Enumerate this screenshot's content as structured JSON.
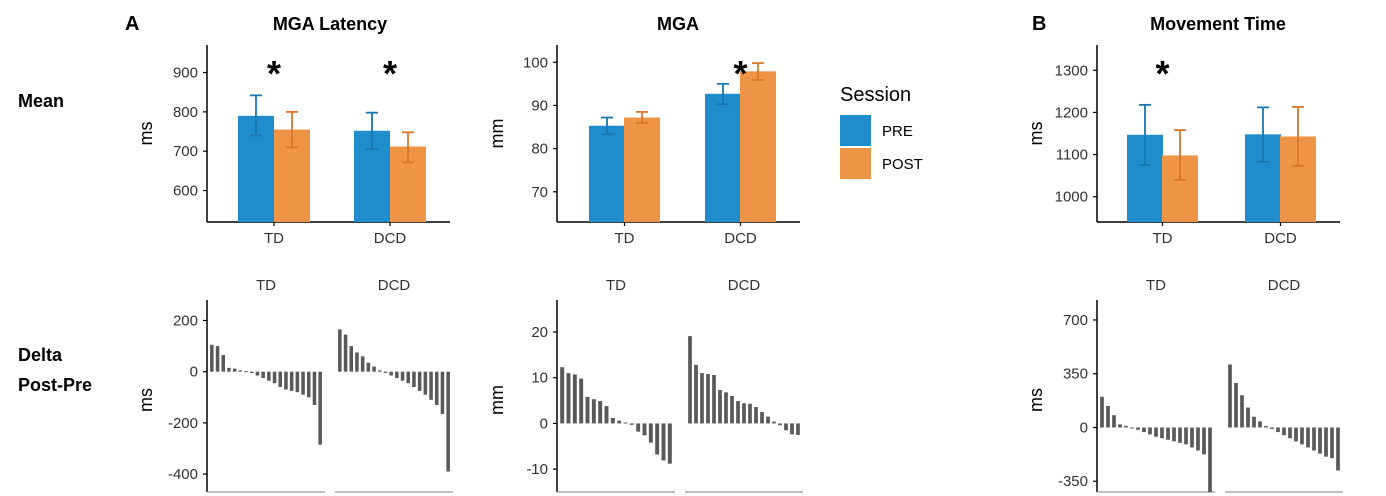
{
  "panel_labels": [
    "A",
    "B"
  ],
  "row_labels": {
    "mean": "Mean",
    "delta_line1": "Delta",
    "delta_line2": "Post-Pre"
  },
  "legend": {
    "title": "Session",
    "items": [
      {
        "label": "PRE",
        "color": "#1f8dcb"
      },
      {
        "label": "POST",
        "color": "#ee9446"
      }
    ]
  },
  "colors": {
    "pre": "#1f8dcb",
    "pre_err": "#1877b0",
    "post": "#ee9446",
    "post_err": "#d9782b",
    "delta_bar": "#595959",
    "axis": "#000000"
  },
  "chart_data": [
    {
      "type": "bar",
      "title": "MGA Latency",
      "ylabel": "ms",
      "categories": [
        "TD",
        "DCD"
      ],
      "ylim": [
        520,
        970
      ],
      "yticks": [
        600,
        700,
        800,
        900
      ],
      "series": [
        {
          "name": "PRE",
          "values": [
            790,
            752
          ],
          "err_low": [
            740,
            705
          ],
          "err_high": [
            842,
            798
          ]
        },
        {
          "name": "POST",
          "values": [
            755,
            712
          ],
          "err_low": [
            710,
            672
          ],
          "err_high": [
            800,
            748
          ]
        }
      ],
      "significance": [
        "*",
        "*"
      ]
    },
    {
      "type": "bar",
      "title": "MGA",
      "ylabel": "mm",
      "categories": [
        "TD",
        "DCD"
      ],
      "ylim": [
        63,
        104
      ],
      "yticks": [
        70,
        80,
        90,
        100
      ],
      "series": [
        {
          "name": "PRE",
          "values": [
            85.3,
            92.7
          ],
          "err_low": [
            83.3,
            90.3
          ],
          "err_high": [
            87.2,
            95.0
          ]
        },
        {
          "name": "POST",
          "values": [
            87.2,
            97.9
          ],
          "err_low": [
            85.9,
            95.9
          ],
          "err_high": [
            88.5,
            99.8
          ]
        }
      ],
      "significance": [
        "",
        "*"
      ]
    },
    {
      "type": "bar",
      "title": "Movement Time",
      "ylabel": "ms",
      "categories": [
        "TD",
        "DCD"
      ],
      "ylim": [
        940,
        1360
      ],
      "yticks": [
        1000,
        1100,
        1200,
        1300
      ],
      "series": [
        {
          "name": "PRE",
          "values": [
            1147,
            1148
          ],
          "err_low": [
            1075,
            1083
          ],
          "err_high": [
            1218,
            1212
          ]
        },
        {
          "name": "POST",
          "values": [
            1098,
            1143
          ],
          "err_low": [
            1040,
            1073
          ],
          "err_high": [
            1158,
            1213
          ]
        }
      ],
      "significance": [
        "*",
        ""
      ]
    },
    {
      "type": "bar",
      "ylabel": "ms",
      "facets": [
        "TD",
        "DCD"
      ],
      "ylim": [
        -470,
        280
      ],
      "yticks": [
        -400,
        -200,
        0,
        200
      ],
      "series": [
        {
          "name": "TD",
          "values": [
            105,
            100,
            65,
            15,
            12,
            5,
            2,
            -5,
            -15,
            -25,
            -35,
            -45,
            -60,
            -70,
            -75,
            -80,
            -90,
            -100,
            -130,
            -285
          ]
        },
        {
          "name": "DCD",
          "values": [
            165,
            145,
            100,
            75,
            60,
            35,
            20,
            5,
            -5,
            -15,
            -25,
            -35,
            -45,
            -60,
            -75,
            -90,
            -110,
            -130,
            -165,
            -390
          ]
        }
      ]
    },
    {
      "type": "bar",
      "ylabel": "mm",
      "facets": [
        "TD",
        "DCD"
      ],
      "ylim": [
        -15,
        27
      ],
      "yticks": [
        -10,
        0,
        10,
        20
      ],
      "series": [
        {
          "name": "TD",
          "values": [
            12.3,
            11,
            10.7,
            9.8,
            5.8,
            5.3,
            4.9,
            3.8,
            1.2,
            0.6,
            0.2,
            -0.3,
            -1.8,
            -2.6,
            -4.2,
            -6.8,
            -8.1,
            -8.8
          ]
        },
        {
          "name": "DCD",
          "values": [
            19.1,
            12.8,
            11.0,
            10.8,
            10.6,
            7.3,
            6.8,
            6.0,
            4.9,
            4.4,
            4.3,
            3.6,
            2.5,
            1.5,
            0.4,
            -0.4,
            -1.5,
            -2.4,
            -2.5
          ]
        }
      ]
    },
    {
      "type": "bar",
      "ylabel": "ms",
      "facets": [
        "TD",
        "DCD"
      ],
      "ylim": [
        -420,
        830
      ],
      "yticks": [
        -350,
        0,
        350,
        700
      ],
      "yticklabels": [
        "-350",
        "0",
        "350",
        "700"
      ],
      "series": [
        {
          "name": "TD",
          "values": [
            200,
            140,
            80,
            20,
            10,
            0,
            -15,
            -30,
            -45,
            -60,
            -70,
            -80,
            -90,
            -100,
            -110,
            -130,
            -150,
            -175,
            -420
          ]
        },
        {
          "name": "DCD",
          "values": [
            410,
            290,
            210,
            130,
            70,
            40,
            10,
            -10,
            -30,
            -50,
            -70,
            -90,
            -110,
            -130,
            -150,
            -170,
            -190,
            -200,
            -280
          ]
        }
      ]
    }
  ]
}
